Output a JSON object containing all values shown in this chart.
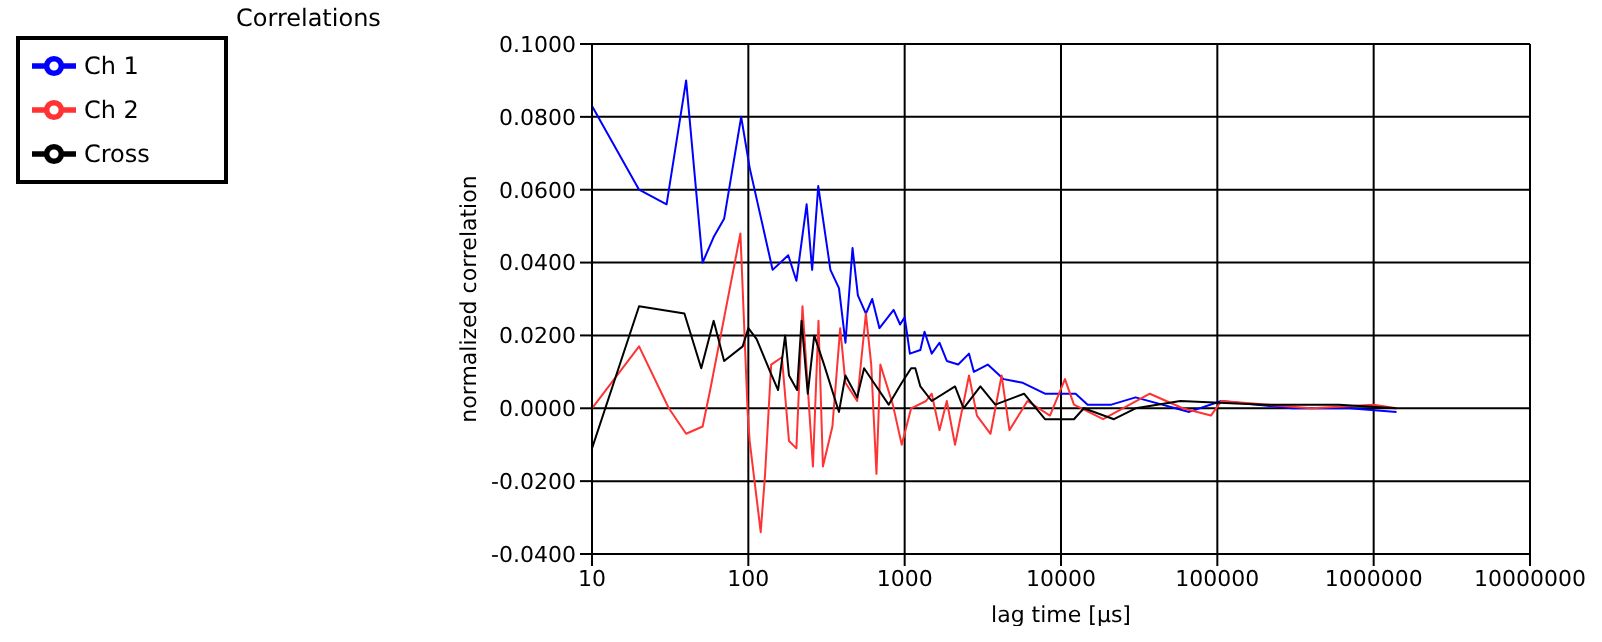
{
  "chart_data": {
    "type": "line",
    "title": "Correlations",
    "xlabel": "lag time [µs]",
    "ylabel": "normalized correlation",
    "log": "x",
    "grid": true,
    "legend": "top left",
    "marker": "none",
    "line_style": "solid",
    "xlim": [
      10,
      10000000
    ],
    "xticks": [
      10,
      100,
      1000,
      10000,
      100000,
      1000000,
      10000000
    ],
    "ylim": [
      -0.04,
      0.1
    ],
    "yticks": [
      {
        "value": -0.04,
        "label": "-0.0400"
      },
      {
        "value": -0.02,
        "label": "-0.0200"
      },
      {
        "value": 0,
        "label": "0.0000"
      },
      {
        "value": 0.02,
        "label": "0.0200"
      },
      {
        "value": 0.04,
        "label": "0.0400"
      },
      {
        "value": 0.06,
        "label": "0.0600"
      },
      {
        "value": 0.08,
        "label": "0.0800"
      },
      {
        "value": 0.1,
        "label": "0.1000"
      }
    ],
    "series": [
      {
        "name": "Ch 1",
        "color": "#0000ff",
        "x": [
          10,
          20,
          30,
          40,
          51,
          60,
          70,
          90,
          102,
          143,
          180,
          203,
          236,
          256,
          280,
          335,
          380,
          418,
          464,
          502,
          565,
          620,
          690,
          850,
          935,
          1000,
          1080,
          1260,
          1340,
          1490,
          1670,
          1860,
          2200,
          2580,
          2770,
          3400,
          4300,
          5700,
          7900,
          10000,
          12400,
          14800,
          21000,
          30000,
          66000,
          106000,
          300000,
          700000,
          1400000
        ],
        "values": [
          0.083,
          0.06,
          0.056,
          0.09,
          0.04,
          0.047,
          0.052,
          0.08,
          0.066,
          0.038,
          0.042,
          0.035,
          0.056,
          0.038,
          0.061,
          0.038,
          0.033,
          0.018,
          0.044,
          0.031,
          0.026,
          0.03,
          0.022,
          0.027,
          0.023,
          0.025,
          0.015,
          0.016,
          0.021,
          0.015,
          0.018,
          0.013,
          0.012,
          0.015,
          0.01,
          0.012,
          0.008,
          0.007,
          0.004,
          0.004,
          0.004,
          0.001,
          0.001,
          0.003,
          -0.001,
          0.002,
          0,
          0,
          -0.001
        ]
      },
      {
        "name": "Ch 2",
        "color": "#ff3333",
        "x": [
          10,
          20,
          31,
          40,
          51,
          57,
          89,
          99,
          102,
          120,
          128,
          140,
          164,
          182,
          203,
          222,
          259,
          281,
          300,
          345,
          387,
          418,
          497,
          565,
          611,
          660,
          699,
          840,
          958,
          1100,
          1370,
          1490,
          1670,
          1860,
          2100,
          2580,
          2900,
          3540,
          4170,
          4680,
          6100,
          8500,
          10600,
          12100,
          18600,
          37000,
          60000,
          91000,
          106000,
          400000,
          1000000,
          1400000
        ],
        "values": [
          0,
          0.017,
          0,
          -0.007,
          -0.005,
          0.005,
          0.048,
          -0.001,
          -0.009,
          -0.034,
          -0.018,
          0.012,
          0.014,
          -0.009,
          -0.011,
          0.028,
          -0.016,
          0.024,
          -0.016,
          -0.005,
          0.022,
          0.007,
          0.002,
          0.026,
          0.012,
          -0.018,
          0.012,
          0.001,
          -0.01,
          0,
          0.002,
          0.004,
          -0.006,
          0.002,
          -0.01,
          0.009,
          -0.002,
          -0.007,
          0.009,
          -0.006,
          0.002,
          -0.002,
          0.008,
          0.001,
          -0.003,
          0.004,
          0,
          -0.002,
          0.002,
          0,
          0.001,
          0
        ]
      },
      {
        "name": "Cross",
        "color": "#000000",
        "x": [
          10,
          20,
          39,
          50,
          60,
          70,
          92,
          100,
          113,
          138,
          155,
          172,
          182,
          205,
          219,
          240,
          264,
          305,
          380,
          418,
          497,
          550,
          635,
          790,
          958,
          1100,
          1170,
          1260,
          1490,
          2100,
          2380,
          3050,
          3800,
          5800,
          7900,
          12100,
          14000,
          21800,
          30000,
          58000,
          200000,
          600000,
          1400000
        ],
        "values": [
          -0.011,
          0.028,
          0.026,
          0.011,
          0.024,
          0.013,
          0.017,
          0.022,
          0.019,
          0.01,
          0.005,
          0.02,
          0.009,
          0.005,
          0.024,
          0.004,
          0.02,
          0.012,
          -0.001,
          0.009,
          0.003,
          0.011,
          0.007,
          0.001,
          0.007,
          0.011,
          0.011,
          0.006,
          0.002,
          0.006,
          0,
          0.006,
          0.001,
          0.004,
          -0.003,
          -0.003,
          0,
          -0.003,
          0,
          0.002,
          0.001,
          0.001,
          0
        ]
      }
    ]
  }
}
